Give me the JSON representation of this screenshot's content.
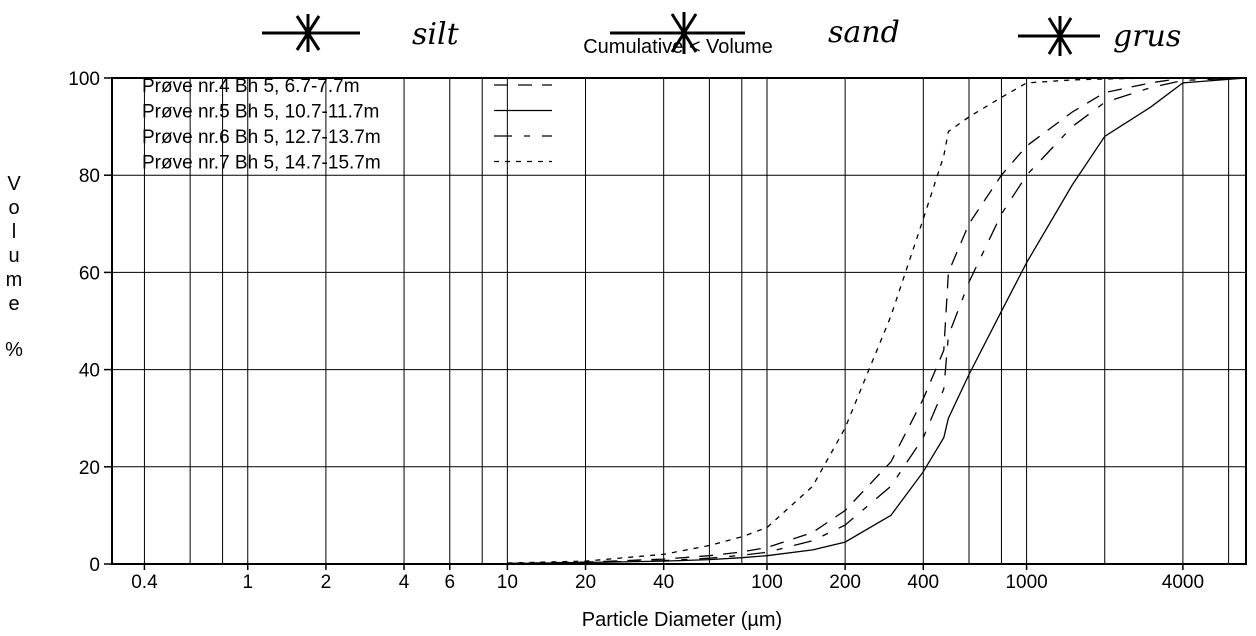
{
  "chart_data": {
    "type": "line",
    "title": "Cumulative < Volume",
    "xlabel": "Particle Diameter (µm)",
    "ylabel": "V o l u m e %",
    "x_scale": "log",
    "xlim": [
      0.3,
      7000
    ],
    "ylim": [
      0,
      100
    ],
    "x_ticks": [
      0.4,
      1,
      2,
      4,
      6,
      10,
      20,
      40,
      100,
      200,
      400,
      1000,
      4000
    ],
    "x_tick_labels": [
      "0.4",
      "1",
      "2",
      "4",
      "6",
      "10",
      "20",
      "40",
      "100",
      "200",
      "400",
      "1000",
      "4000"
    ],
    "y_ticks": [
      0,
      20,
      40,
      60,
      80,
      100
    ],
    "y_tick_labels": [
      "0",
      "20",
      "40",
      "60",
      "80",
      "100"
    ],
    "grid": true,
    "legend_position": "top-left",
    "series": [
      {
        "name": "Prøve nr.4 Bh 5, 6.7-7.7m",
        "dash": "14,10",
        "x": [
          10,
          20,
          40,
          60,
          80,
          100,
          150,
          200,
          300,
          400,
          480,
          500,
          600,
          800,
          1000,
          1500,
          2000,
          3000,
          4000,
          7000
        ],
        "y": [
          0.1,
          0.4,
          1.0,
          1.7,
          2.5,
          3.4,
          6.5,
          11,
          21,
          34,
          44,
          60,
          70,
          80,
          86,
          93,
          97,
          99,
          100,
          100
        ]
      },
      {
        "name": "Prøve nr.5 Bh 5, 10.7-11.7m",
        "dash": "",
        "x": [
          10,
          20,
          40,
          60,
          80,
          100,
          150,
          200,
          300,
          400,
          480,
          500,
          600,
          800,
          1000,
          1500,
          2000,
          3000,
          4000,
          7000
        ],
        "y": [
          0.1,
          0.3,
          0.6,
          0.9,
          1.3,
          1.7,
          2.9,
          4.5,
          10,
          19,
          26,
          30,
          39,
          52,
          62,
          78,
          88,
          94,
          99,
          100
        ]
      },
      {
        "name": "Prøve nr.6 Bh 5, 12.7-13.7m",
        "dash": "18,12,6,12",
        "x": [
          10,
          20,
          40,
          60,
          80,
          100,
          150,
          200,
          300,
          400,
          480,
          500,
          600,
          800,
          1000,
          1500,
          2000,
          3000,
          4000,
          7000
        ],
        "y": [
          0.1,
          0.3,
          0.7,
          1.2,
          1.8,
          2.4,
          4.8,
          8,
          16,
          26,
          36,
          47,
          58,
          72,
          80,
          90,
          95,
          98,
          99.5,
          100
        ]
      },
      {
        "name": "Prøve nr.7 Bh 5, 14.7-15.7m",
        "dash": "5,6",
        "x": [
          10,
          20,
          40,
          60,
          80,
          100,
          150,
          200,
          300,
          400,
          480,
          500,
          600,
          800,
          1000,
          1500,
          2000,
          3000,
          4000,
          7000
        ],
        "y": [
          0.2,
          0.6,
          2.0,
          3.8,
          5.6,
          7.5,
          16,
          28,
          51,
          71,
          84,
          89,
          92,
          96,
          99,
          99.6,
          99.8,
          100,
          100,
          100
        ]
      }
    ]
  },
  "annotations": {
    "silt": "silt",
    "sand": "sand",
    "grus": "grus"
  }
}
